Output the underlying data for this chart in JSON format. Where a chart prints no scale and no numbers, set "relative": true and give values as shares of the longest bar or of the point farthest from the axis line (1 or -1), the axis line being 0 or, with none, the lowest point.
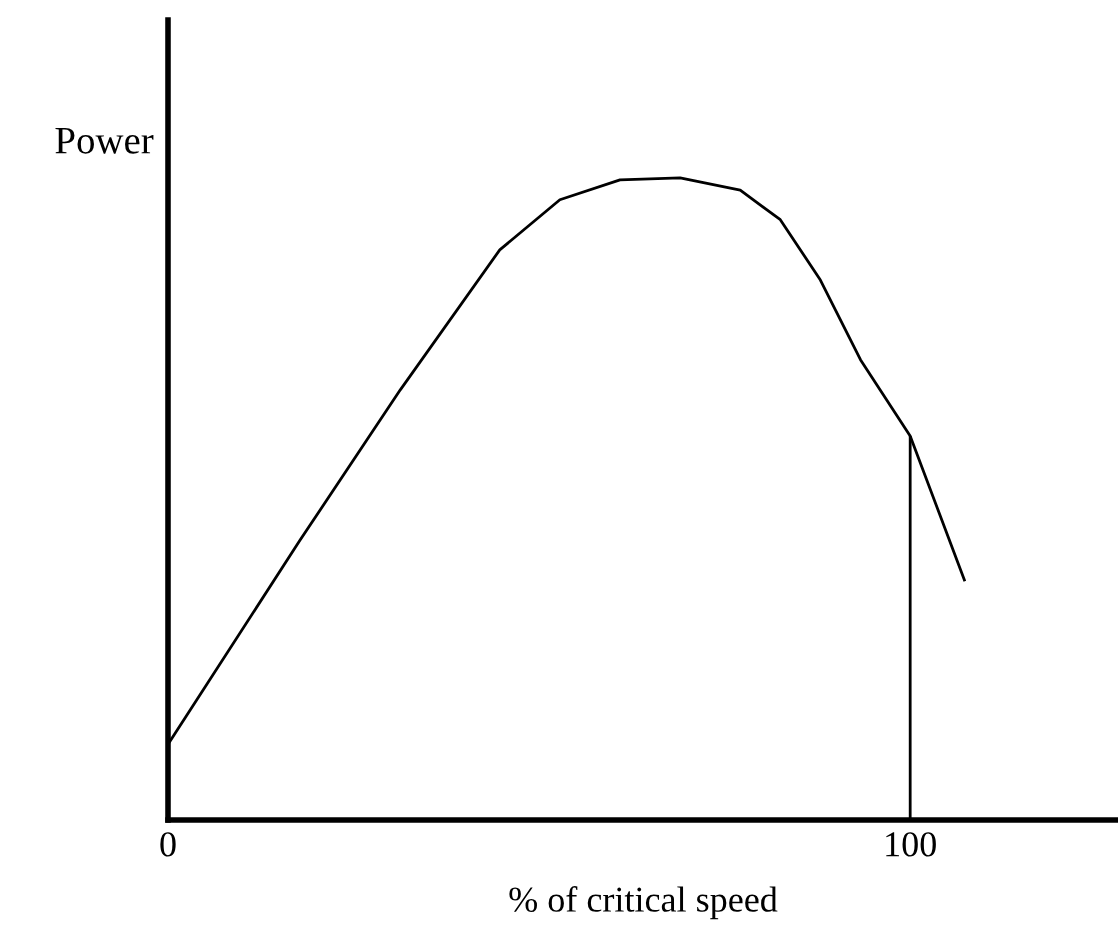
{
  "chart_data": {
    "type": "line",
    "relative": true,
    "xlabel": "% of critical speed",
    "ylabel": "Power",
    "xlim": [
      0,
      128
    ],
    "xticks": [
      0,
      100
    ],
    "grid": false,
    "legend": false,
    "marker": "none",
    "line_style": "solid",
    "ref_lines": [
      {
        "axis": "x",
        "value": 100,
        "color": "#000000"
      }
    ],
    "series": [
      {
        "color": "#000000",
        "x": [
          0,
          17.8,
          31.3,
          44.7,
          52.8,
          60.9,
          69.0,
          77.1,
          82.5,
          87.9,
          93.3,
          100,
          107.3
        ],
        "values": [
          0.118,
          0.436,
          0.67,
          0.888,
          0.966,
          0.997,
          1.0,
          0.981,
          0.935,
          0.841,
          0.717,
          0.598,
          0.374
        ]
      }
    ]
  }
}
